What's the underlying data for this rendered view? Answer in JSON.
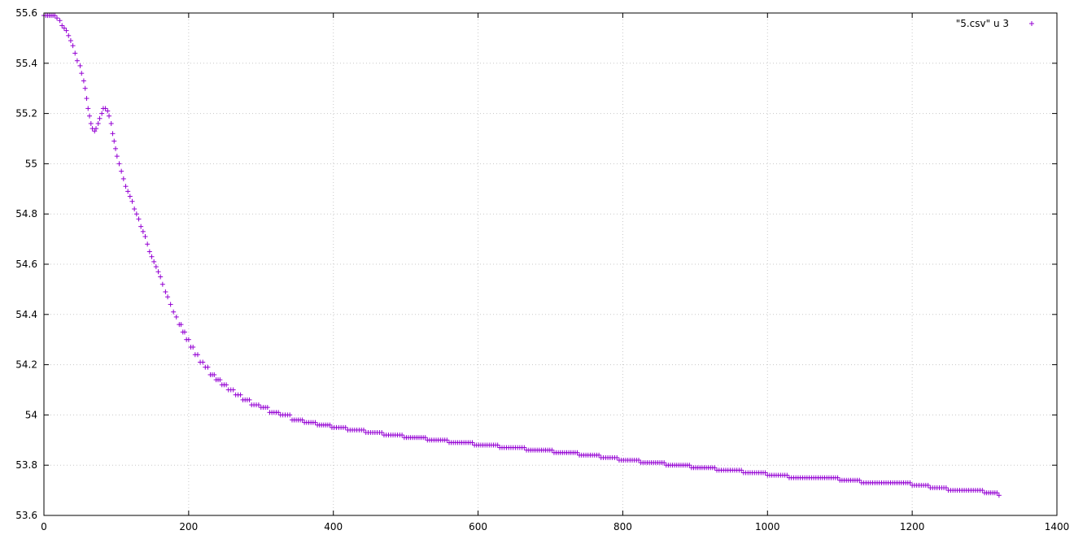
{
  "chart_data": {
    "type": "scatter",
    "title": "",
    "xlabel": "",
    "ylabel": "",
    "xlim": [
      0,
      1400
    ],
    "ylim": [
      53.6,
      55.6
    ],
    "x_ticks": [
      0,
      200,
      400,
      600,
      800,
      1000,
      1200,
      1400
    ],
    "y_ticks": [
      53.6,
      53.8,
      54,
      54.2,
      54.4,
      54.6,
      54.8,
      55,
      55.2,
      55.4,
      55.6
    ],
    "x_tick_labels": [
      "0",
      "200",
      "400",
      "600",
      "800",
      "1000",
      "1200",
      "1400"
    ],
    "y_tick_labels": [
      "53.6",
      "53.8",
      "54",
      "54.2",
      "54.4",
      "54.6",
      "54.8",
      "55",
      "55.2",
      "55.4",
      "55.6"
    ],
    "grid": true,
    "legend_position": "top-right",
    "marker": "plus",
    "color": "#9400d3",
    "series": [
      {
        "name": "\"5.csv\" u 3",
        "points": [
          [
            0,
            55.59
          ],
          [
            5,
            55.59
          ],
          [
            10,
            55.59
          ],
          [
            15,
            55.59
          ],
          [
            18,
            55.58
          ],
          [
            22,
            55.57
          ],
          [
            25,
            55.55
          ],
          [
            28,
            55.54
          ],
          [
            31,
            55.53
          ],
          [
            34,
            55.51
          ],
          [
            37,
            55.49
          ],
          [
            40,
            55.47
          ],
          [
            43,
            55.44
          ],
          [
            46,
            55.41
          ],
          [
            50,
            55.39
          ],
          [
            52,
            55.36
          ],
          [
            55,
            55.33
          ],
          [
            57,
            55.3
          ],
          [
            59,
            55.26
          ],
          [
            61,
            55.22
          ],
          [
            63,
            55.19
          ],
          [
            65,
            55.16
          ],
          [
            67,
            55.14
          ],
          [
            70,
            55.13
          ],
          [
            72,
            55.14
          ],
          [
            75,
            55.16
          ],
          [
            77,
            55.18
          ],
          [
            80,
            55.2
          ],
          [
            82,
            55.22
          ],
          [
            85,
            55.22
          ],
          [
            88,
            55.21
          ],
          [
            90,
            55.19
          ],
          [
            93,
            55.16
          ],
          [
            95,
            55.12
          ],
          [
            97,
            55.09
          ],
          [
            99,
            55.06
          ],
          [
            101,
            55.03
          ],
          [
            104,
            55.0
          ],
          [
            107,
            54.97
          ],
          [
            110,
            54.94
          ],
          [
            113,
            54.91
          ],
          [
            116,
            54.89
          ],
          [
            119,
            54.87
          ],
          [
            122,
            54.85
          ],
          [
            125,
            54.82
          ],
          [
            128,
            54.8
          ],
          [
            131,
            54.78
          ],
          [
            134,
            54.75
          ],
          [
            137,
            54.73
          ],
          [
            140,
            54.71
          ],
          [
            143,
            54.68
          ],
          [
            146,
            54.65
          ],
          [
            149,
            54.63
          ],
          [
            152,
            54.61
          ],
          [
            155,
            54.59
          ],
          [
            158,
            54.57
          ],
          [
            161,
            54.55
          ],
          [
            164,
            54.52
          ],
          [
            168,
            54.49
          ],
          [
            171,
            54.47
          ],
          [
            175,
            54.44
          ],
          [
            179,
            54.41
          ],
          [
            183,
            54.39
          ],
          [
            187,
            54.36
          ],
          [
            192,
            54.33
          ],
          [
            197,
            54.3
          ],
          [
            203,
            54.27
          ],
          [
            209,
            54.24
          ],
          [
            216,
            54.21
          ],
          [
            223,
            54.19
          ],
          [
            230,
            54.16
          ],
          [
            238,
            54.14
          ],
          [
            246,
            54.12
          ],
          [
            255,
            54.1
          ],
          [
            265,
            54.08
          ],
          [
            275,
            54.06
          ],
          [
            287,
            54.04
          ],
          [
            300,
            54.03
          ],
          [
            312,
            54.01
          ],
          [
            327,
            54.0
          ],
          [
            343,
            53.98
          ],
          [
            360,
            53.97
          ],
          [
            378,
            53.96
          ],
          [
            398,
            53.95
          ],
          [
            420,
            53.94
          ],
          [
            445,
            53.93
          ],
          [
            470,
            53.92
          ],
          [
            498,
            53.91
          ],
          [
            530,
            53.9
          ],
          [
            560,
            53.89
          ],
          [
            595,
            53.88
          ],
          [
            630,
            53.87
          ],
          [
            670,
            53.86
          ],
          [
            705,
            53.85
          ],
          [
            740,
            53.84
          ],
          [
            770,
            53.83
          ],
          [
            795,
            53.82
          ],
          [
            825,
            53.81
          ],
          [
            860,
            53.8
          ],
          [
            895,
            53.79
          ],
          [
            930,
            53.78
          ],
          [
            970,
            53.77
          ],
          [
            1000,
            53.76
          ],
          [
            1030,
            53.75
          ],
          [
            1070,
            53.75
          ],
          [
            1100,
            53.74
          ],
          [
            1130,
            53.73
          ],
          [
            1170,
            53.73
          ],
          [
            1200,
            53.72
          ],
          [
            1225,
            53.71
          ],
          [
            1250,
            53.7
          ],
          [
            1275,
            53.7
          ],
          [
            1300,
            53.69
          ],
          [
            1320,
            53.68
          ]
        ]
      }
    ]
  }
}
